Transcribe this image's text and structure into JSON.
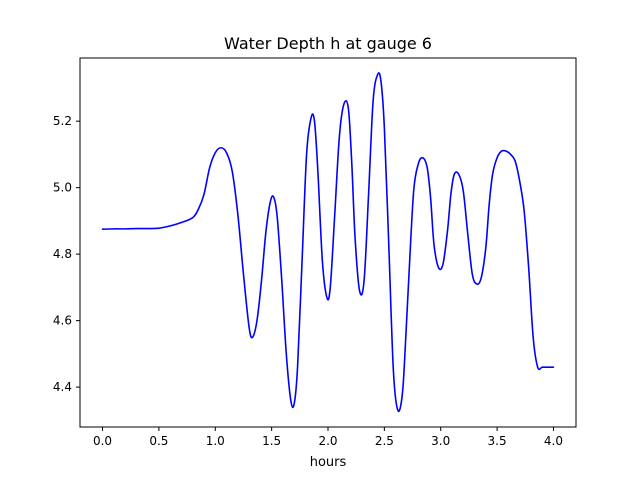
{
  "chart_data": {
    "type": "line",
    "title": "Water Depth h at gauge 6",
    "xlabel": "hours",
    "ylabel": "",
    "xlim": [
      -0.2,
      4.2
    ],
    "ylim": [
      4.28,
      5.39
    ],
    "x_ticks": [
      0.0,
      0.5,
      1.0,
      1.5,
      2.0,
      2.5,
      3.0,
      3.5,
      4.0
    ],
    "x_tick_labels": [
      "0.0",
      "0.5",
      "1.0",
      "1.5",
      "2.0",
      "2.5",
      "3.0",
      "3.5",
      "4.0"
    ],
    "y_ticks": [
      4.4,
      4.6,
      4.8,
      5.0,
      5.2
    ],
    "y_tick_labels": [
      "4.4",
      "4.6",
      "4.8",
      "5.0",
      "5.2"
    ],
    "grid": false,
    "legend": "none",
    "series": [
      {
        "color": "#0000ff",
        "x": [
          0.0,
          0.1,
          0.2,
          0.3,
          0.4,
          0.5,
          0.6,
          0.7,
          0.8,
          0.85,
          0.9,
          0.95,
          1.0,
          1.05,
          1.1,
          1.15,
          1.2,
          1.25,
          1.3,
          1.33,
          1.37,
          1.41,
          1.45,
          1.49,
          1.52,
          1.55,
          1.59,
          1.63,
          1.67,
          1.7,
          1.73,
          1.77,
          1.81,
          1.85,
          1.88,
          1.91,
          1.95,
          1.99,
          2.02,
          2.06,
          2.1,
          2.14,
          2.18,
          2.21,
          2.24,
          2.28,
          2.32,
          2.36,
          2.4,
          2.44,
          2.47,
          2.5,
          2.54,
          2.58,
          2.62,
          2.66,
          2.69,
          2.72,
          2.76,
          2.8,
          2.84,
          2.88,
          2.91,
          2.94,
          2.98,
          3.02,
          3.06,
          3.09,
          3.12,
          3.16,
          3.2,
          3.24,
          3.28,
          3.32,
          3.36,
          3.4,
          3.43,
          3.46,
          3.5,
          3.54,
          3.58,
          3.62,
          3.66,
          3.7,
          3.74,
          3.78,
          3.82,
          3.86,
          3.9,
          3.94,
          3.98,
          4.0
        ],
        "y": [
          4.875,
          4.876,
          4.876,
          4.877,
          4.877,
          4.878,
          4.885,
          4.895,
          4.91,
          4.935,
          4.98,
          5.06,
          5.105,
          5.12,
          5.105,
          5.05,
          4.92,
          4.74,
          4.58,
          4.55,
          4.6,
          4.72,
          4.87,
          4.96,
          4.97,
          4.91,
          4.72,
          4.5,
          4.36,
          4.35,
          4.46,
          4.78,
          5.1,
          5.21,
          5.2,
          5.05,
          4.78,
          4.67,
          4.7,
          4.92,
          5.15,
          5.25,
          5.24,
          5.08,
          4.85,
          4.69,
          4.72,
          4.98,
          5.26,
          5.34,
          5.32,
          5.18,
          4.82,
          4.45,
          4.33,
          4.38,
          4.55,
          4.75,
          4.99,
          5.07,
          5.09,
          5.06,
          4.97,
          4.83,
          4.76,
          4.77,
          4.87,
          4.98,
          5.04,
          5.04,
          4.99,
          4.86,
          4.74,
          4.71,
          4.73,
          4.82,
          4.95,
          5.04,
          5.09,
          5.11,
          5.11,
          5.1,
          5.08,
          5.02,
          4.93,
          4.76,
          4.55,
          4.46,
          4.46,
          4.46,
          4.46,
          4.46
        ]
      }
    ]
  }
}
